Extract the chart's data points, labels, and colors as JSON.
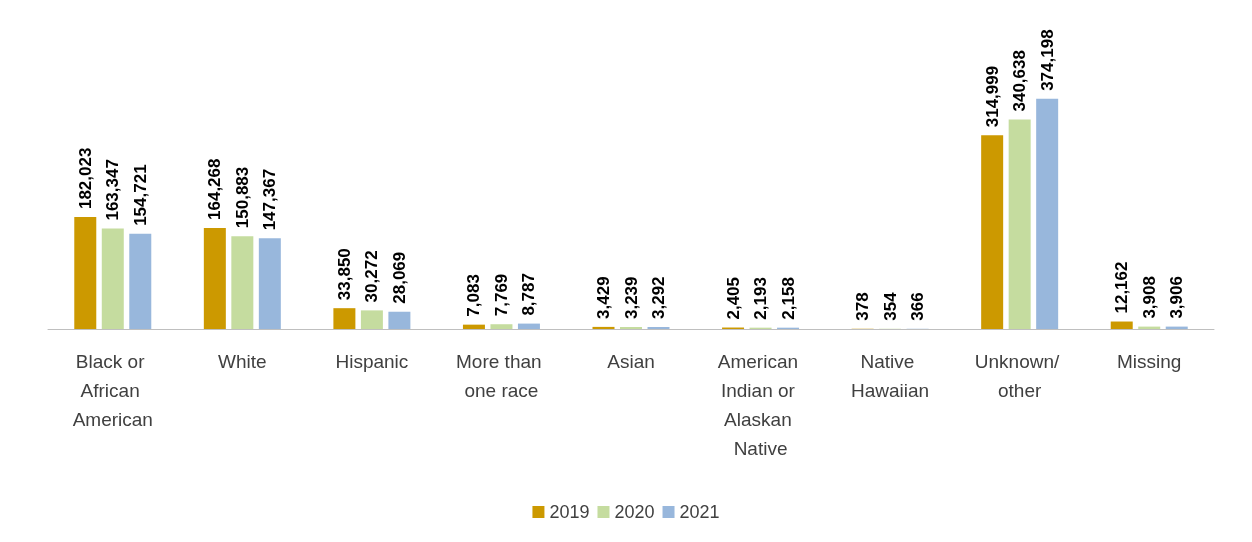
{
  "chart_data": {
    "type": "bar",
    "categories": [
      "Black or African American",
      "White",
      "Hispanic",
      "More than one race",
      "Asian",
      "American Indian or Alaskan Native",
      "Native Hawaiian",
      "Unknown/ other",
      "Missing"
    ],
    "series": [
      {
        "name": "2019",
        "color": "#cc9900",
        "values": [
          182023,
          164268,
          33850,
          7083,
          3429,
          2405,
          378,
          314999,
          12162
        ],
        "value_labels": [
          "182,023",
          "164,268",
          "33,850",
          "7,083",
          "3,429",
          "2,405",
          "378",
          "314,999",
          "12,162"
        ]
      },
      {
        "name": "2020",
        "color": "#c5dc9f",
        "values": [
          163347,
          150883,
          30272,
          7769,
          3239,
          2193,
          354,
          340638,
          3908
        ],
        "value_labels": [
          "163,347",
          "150,883",
          "30,272",
          "7,769",
          "3,239",
          "2,193",
          "354",
          "340,638",
          "3,908"
        ]
      },
      {
        "name": "2021",
        "color": "#98b7dc",
        "values": [
          154721,
          147367,
          28069,
          8787,
          3292,
          2158,
          366,
          374198,
          3906
        ],
        "value_labels": [
          "154,721",
          "147,367",
          "28,069",
          "8,787",
          "3,292",
          "2,158",
          "366",
          "374,198",
          "3,906"
        ]
      }
    ],
    "grid": false,
    "legend": "bottom"
  }
}
